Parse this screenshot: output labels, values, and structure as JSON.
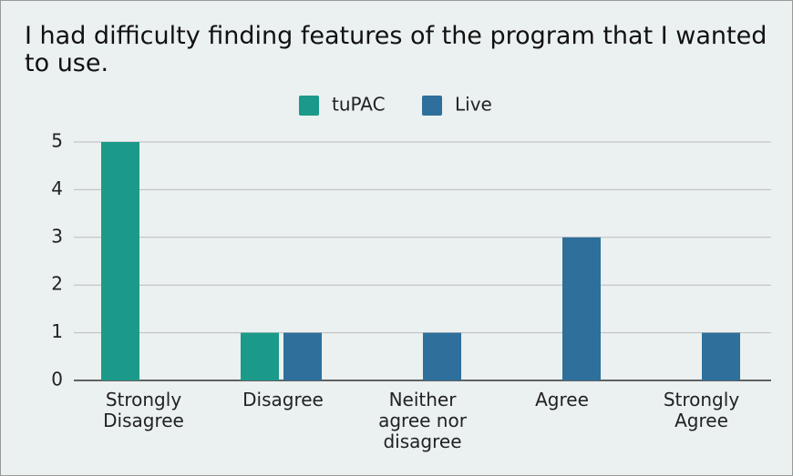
{
  "chart_data": {
    "type": "bar",
    "title": "I had difficulty finding features of the program that I wanted to use.",
    "categories": [
      "Strongly Disagree",
      "Disagree",
      "Neither agree nor disagree",
      "Agree",
      "Strongly Agree"
    ],
    "series": [
      {
        "name": "tuPAC",
        "color": "#1c9a89",
        "values": [
          5,
          1,
          0,
          0,
          0
        ]
      },
      {
        "name": "Live",
        "color": "#2e6f9b",
        "values": [
          0,
          1,
          1,
          3,
          1
        ]
      }
    ],
    "ylim": [
      0,
      5
    ],
    "yticks": [
      0,
      1,
      2,
      3,
      4,
      5
    ],
    "grid": true
  }
}
